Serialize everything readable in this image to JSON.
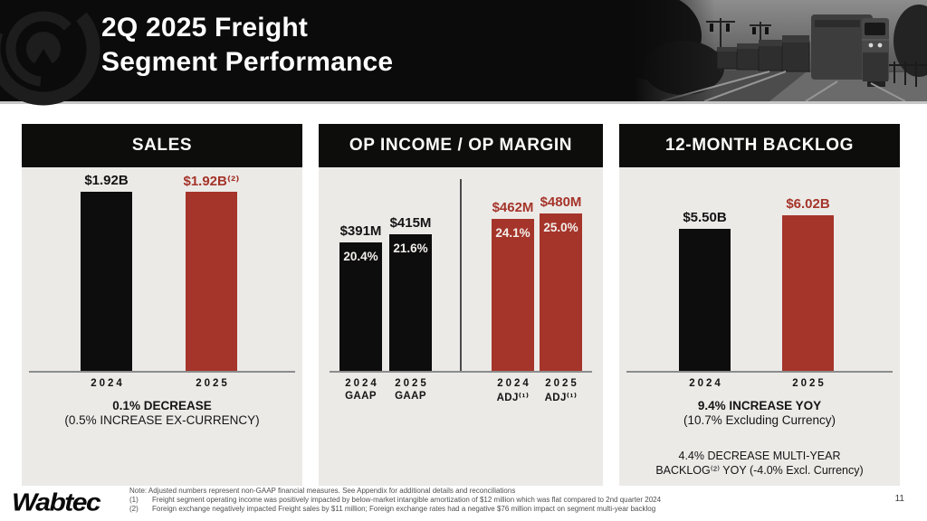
{
  "header": {
    "title_line1": "2Q 2025 Freight",
    "title_line2": "Segment Performance"
  },
  "colors": {
    "accent_red": "#a5342a",
    "bar_black": "#0d0d0d",
    "panel_bg": "#eceae7",
    "masthead_bg": "#0b0b0b"
  },
  "chart_data": [
    {
      "type": "bar",
      "title": "SALES",
      "unit": "$B",
      "categories": [
        "2024",
        "2025"
      ],
      "values": [
        1.92,
        1.92
      ],
      "bar_labels": [
        "$1.92B",
        "$1.92B⁽²⁾"
      ],
      "bar_colors": [
        "black",
        "red"
      ],
      "tick_labels": [
        [
          "2024"
        ],
        [
          "2025"
        ]
      ],
      "grid": false,
      "legend": false,
      "summary": [
        "0.1% DECREASE",
        "(0.5% INCREASE EX-CURRENCY)"
      ]
    },
    {
      "type": "bar",
      "title": "OP INCOME / OP MARGIN",
      "unit": "$M",
      "categories": [
        "2024 GAAP",
        "2025 GAAP",
        "2024 ADJ",
        "2025 ADJ"
      ],
      "values": [
        391,
        415,
        462,
        480
      ],
      "margin_pcts": [
        "20.4%",
        "21.6%",
        "24.1%",
        "25.0%"
      ],
      "bar_labels": [
        "$391M",
        "$415M",
        "$462M",
        "$480M"
      ],
      "bar_colors": [
        "black",
        "black",
        "red",
        "red"
      ],
      "tick_labels": [
        [
          "2024",
          "GAAP"
        ],
        [
          "2025",
          "GAAP"
        ],
        [
          "2024",
          "ADJ⁽¹⁾"
        ],
        [
          "2025",
          "ADJ⁽¹⁾"
        ]
      ],
      "grid": false,
      "legend": false,
      "divider_between_gaap_and_adj": true
    },
    {
      "type": "bar",
      "title": "12-MONTH BACKLOG",
      "unit": "$B",
      "categories": [
        "2024",
        "2025"
      ],
      "values": [
        5.5,
        6.02
      ],
      "bar_labels": [
        "$5.50B",
        "$6.02B"
      ],
      "bar_colors": [
        "black",
        "red"
      ],
      "tick_labels": [
        [
          "2024"
        ],
        [
          "2025"
        ]
      ],
      "grid": false,
      "legend": false,
      "summary": [
        "9.4% INCREASE YOY",
        "(10.7% Excluding Currency)"
      ],
      "summary2": [
        "4.4% DECREASE  MULTI-YEAR",
        "BACKLOG⁽²⁾ YOY (-4.0% Excl. Currency)"
      ]
    }
  ],
  "footer": {
    "logo": "Wabtec",
    "page_number": "11",
    "note": "Note: Adjusted numbers represent non-GAAP financial measures. See Appendix for additional details and reconciliations",
    "footnotes": [
      {
        "num": "(1)",
        "text": "Freight segment operating income was positively impacted by below-market intangible amortization of $12 million which was flat compared to 2nd quarter 2024"
      },
      {
        "num": "(2)",
        "text": "Foreign exchange negatively impacted Freight sales by $11 million; Foreign exchange rates had a negative $76 million impact on segment multi-year backlog"
      }
    ]
  }
}
